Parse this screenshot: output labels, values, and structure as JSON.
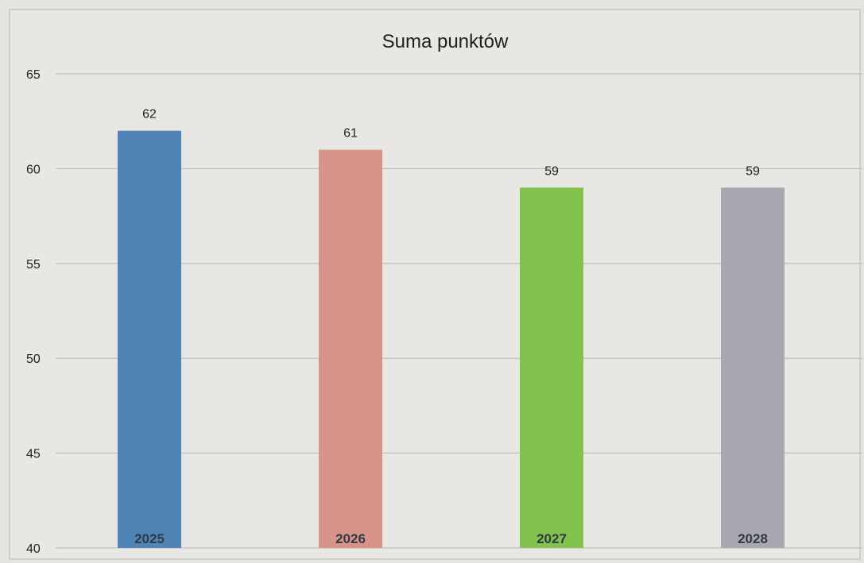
{
  "chart_data": {
    "type": "bar",
    "title": "Suma punktów",
    "categories": [
      "2025",
      "2026",
      "2027",
      "2028"
    ],
    "values": [
      62,
      61,
      59,
      59
    ],
    "data_labels": [
      "62",
      "61",
      "59",
      "59"
    ],
    "colors": [
      "#4f84b4",
      "#d99489",
      "#82c24d",
      "#a9a8b0"
    ],
    "ylim": [
      40,
      65
    ],
    "yticks": [
      40,
      45,
      50,
      55,
      60,
      65
    ],
    "grid": true,
    "legend": "none",
    "xlabel": "",
    "ylabel": ""
  }
}
